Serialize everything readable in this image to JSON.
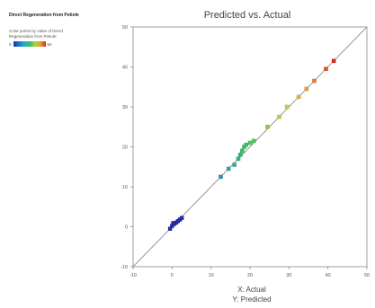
{
  "legend": {
    "title": "Direct Regeneration from Petiole",
    "caption": "Color points by value of Direct Regeneration from Petiole:",
    "min_label": "0",
    "max_label": "64",
    "gradient_colors": [
      "#1f2fa8",
      "#1f6fcf",
      "#22b0c8",
      "#33c06a",
      "#a8d23a",
      "#e8a030",
      "#d02a1e"
    ]
  },
  "chart_data": {
    "type": "scatter",
    "title": "Predicted vs. Actual",
    "xlabel": "X: Actual",
    "ylabel2": "Y: Predicted",
    "xlim": [
      -10,
      50
    ],
    "ylim": [
      -10,
      50
    ],
    "xticks": [
      "-10",
      "0",
      "10",
      "20",
      "30",
      "40",
      "50"
    ],
    "yticks": [
      "-10",
      "0",
      "10",
      "20",
      "30",
      "40",
      "50"
    ],
    "reference_line": [
      [
        -10,
        -10
      ],
      [
        50,
        50
      ]
    ],
    "points": [
      {
        "x": -0.5,
        "y": -0.5,
        "color": "#1f2fa8"
      },
      {
        "x": 0.0,
        "y": 0.2,
        "color": "#1f2fa8"
      },
      {
        "x": 0.5,
        "y": 0.7,
        "color": "#1f2fa8"
      },
      {
        "x": 1.0,
        "y": 1.0,
        "color": "#1f2fa8"
      },
      {
        "x": 1.5,
        "y": 1.4,
        "color": "#1f2fa8"
      },
      {
        "x": 2.0,
        "y": 1.8,
        "color": "#1f2fa8"
      },
      {
        "x": 2.5,
        "y": 2.2,
        "color": "#1f2fa8"
      },
      {
        "x": 0.3,
        "y": 0.9,
        "color": "#1f2fa8"
      },
      {
        "x": 12.5,
        "y": 12.5,
        "color": "#2e8fb0"
      },
      {
        "x": 14.5,
        "y": 14.5,
        "color": "#2ea6a0"
      },
      {
        "x": 16.0,
        "y": 15.5,
        "color": "#30b090"
      },
      {
        "x": 17.0,
        "y": 17.0,
        "color": "#33b878"
      },
      {
        "x": 17.5,
        "y": 18.0,
        "color": "#33b878"
      },
      {
        "x": 18.0,
        "y": 19.0,
        "color": "#38bc6a"
      },
      {
        "x": 18.5,
        "y": 20.0,
        "color": "#3cc060"
      },
      {
        "x": 19.0,
        "y": 20.5,
        "color": "#3cc060"
      },
      {
        "x": 20.0,
        "y": 21.0,
        "color": "#44c45a"
      },
      {
        "x": 21.0,
        "y": 21.5,
        "color": "#4cc858"
      },
      {
        "x": 24.5,
        "y": 25.0,
        "color": "#8ccc3c"
      },
      {
        "x": 27.5,
        "y": 27.5,
        "color": "#b8d03a"
      },
      {
        "x": 29.5,
        "y": 30.0,
        "color": "#d0cc38"
      },
      {
        "x": 32.5,
        "y": 32.5,
        "color": "#e0b030"
      },
      {
        "x": 34.5,
        "y": 34.5,
        "color": "#e89a2c"
      },
      {
        "x": 36.5,
        "y": 36.5,
        "color": "#e67a26"
      },
      {
        "x": 39.5,
        "y": 39.5,
        "color": "#dc5022"
      },
      {
        "x": 41.5,
        "y": 41.5,
        "color": "#d02a1e"
      }
    ]
  }
}
